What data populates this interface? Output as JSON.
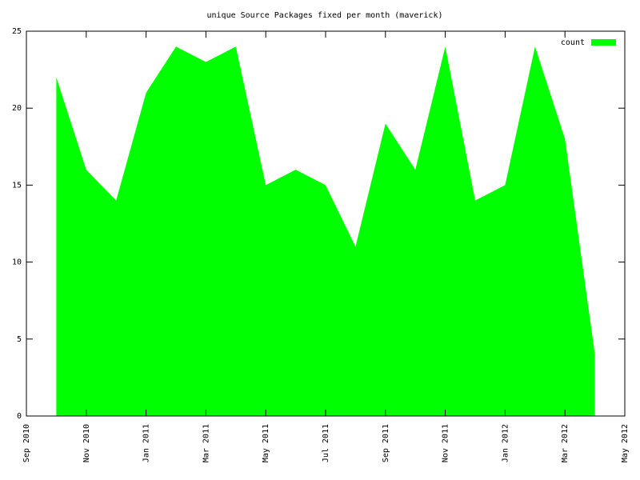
{
  "chart_data": {
    "type": "area",
    "title": "unique Source Packages fixed per month (maverick)",
    "x": [
      "2010-10",
      "2010-11",
      "2010-12",
      "2011-01",
      "2011-02",
      "2011-03",
      "2011-04",
      "2011-05",
      "2011-06",
      "2011-07",
      "2011-08",
      "2011-09",
      "2011-10",
      "2011-11",
      "2011-12",
      "2012-01",
      "2012-02",
      "2012-03",
      "2012-04"
    ],
    "series": [
      {
        "name": "count",
        "color": "#00ff00",
        "values": [
          22,
          16,
          14,
          21,
          24,
          23,
          24,
          15,
          16,
          15,
          11,
          19,
          16,
          24,
          14,
          15,
          24,
          18,
          4
        ]
      }
    ],
    "xlim": [
      "2010-09",
      "2012-05"
    ],
    "xticks": [
      {
        "value": "2010-09",
        "label": "Sep 2010"
      },
      {
        "value": "2010-11",
        "label": "Nov 2010"
      },
      {
        "value": "2011-01",
        "label": "Jan 2011"
      },
      {
        "value": "2011-03",
        "label": "Mar 2011"
      },
      {
        "value": "2011-05",
        "label": "May 2011"
      },
      {
        "value": "2011-07",
        "label": "Jul 2011"
      },
      {
        "value": "2011-09",
        "label": "Sep 2011"
      },
      {
        "value": "2011-11",
        "label": "Nov 2011"
      },
      {
        "value": "2012-01",
        "label": "Jan 2012"
      },
      {
        "value": "2012-03",
        "label": "Mar 2012"
      },
      {
        "value": "2012-05",
        "label": "May 2012"
      }
    ],
    "ylim": [
      0,
      25
    ],
    "yticks": [
      0,
      5,
      10,
      15,
      20,
      25
    ],
    "legend": "top-right"
  }
}
